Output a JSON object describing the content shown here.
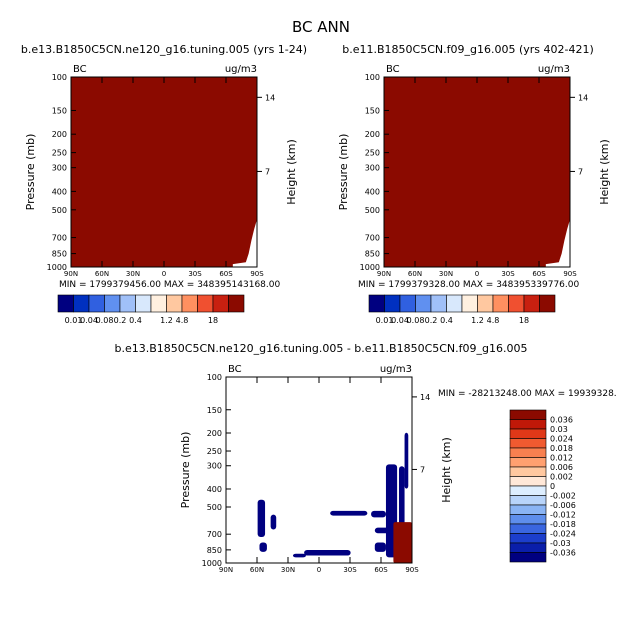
{
  "figure_title": "BC ANN",
  "colors": {
    "panel_fill": "#8B0A00",
    "contour": "#000080"
  },
  "chart_data": [
    {
      "type": "heatmap",
      "id": "panel1",
      "title": "b.e13.B1850C5CN.ne120_g16.tuning.005 (yrs 1-24)",
      "var_label": "BC",
      "units": "ug/m3",
      "ylabel": "Pressure (mb)",
      "ylabel_right": "Height (km)",
      "x_ticks": [
        "90N",
        "60N",
        "30N",
        "0",
        "30S",
        "60S",
        "90S"
      ],
      "y_ticks": [
        "100",
        "150",
        "200",
        "250",
        "300",
        "400",
        "500",
        "700",
        "850",
        "1000"
      ],
      "y_ticks_right": [
        "14",
        "7"
      ],
      "stats": "MIN = 1799379456.00   MAX = 348395143168.00",
      "fill": "uniform (above top contour level)"
    },
    {
      "type": "heatmap",
      "id": "panel2",
      "title": "b.e11.B1850C5CN.f09_g16.005 (yrs 402-421)",
      "var_label": "BC",
      "units": "ug/m3",
      "ylabel": "Pressure (mb)",
      "ylabel_right": "Height (km)",
      "x_ticks": [
        "90N",
        "60N",
        "30N",
        "0",
        "30S",
        "60S",
        "90S"
      ],
      "y_ticks": [
        "100",
        "150",
        "200",
        "250",
        "300",
        "400",
        "500",
        "700",
        "850",
        "1000"
      ],
      "y_ticks_right": [
        "14",
        "7"
      ],
      "stats": "MIN = 1799379328.00   MAX = 348395339776.00",
      "fill": "uniform (above top contour level)"
    },
    {
      "type": "heatmap",
      "id": "panel3",
      "title": "b.e13.B1850C5CN.ne120_g16.tuning.005 - b.e11.B1850C5CN.f09_g16.005",
      "var_label": "BC",
      "units": "ug/m3",
      "ylabel": "Pressure (mb)",
      "ylabel_right": "Height (km)",
      "x_ticks": [
        "90N",
        "60N",
        "30N",
        "0",
        "30S",
        "60S",
        "90S"
      ],
      "y_ticks": [
        "100",
        "150",
        "200",
        "250",
        "300",
        "400",
        "500",
        "700",
        "850",
        "1000"
      ],
      "y_ticks_right": [
        "14",
        "7"
      ],
      "stats": "MIN = -28213248.00   MAX = 19939328."
    }
  ],
  "colorbar_top": {
    "labels": [
      "0.01",
      "0.04",
      "0.08",
      "0.2",
      "0.4",
      "1.2",
      "4.8",
      "18"
    ],
    "colors": [
      "#000080",
      "#0030C0",
      "#3060E0",
      "#6090F0",
      "#A0C0F8",
      "#D8E8FC",
      "#FFF0E0",
      "#FFC8A0",
      "#FF9060",
      "#F05030",
      "#C82010",
      "#8B0A00"
    ]
  },
  "colorbar_diff": {
    "labels": [
      "0.036",
      "0.03",
      "0.024",
      "0.018",
      "0.012",
      "0.006",
      "0.002",
      "0",
      "-0.002",
      "-0.006",
      "-0.012",
      "-0.018",
      "-0.024",
      "-0.03",
      "-0.036"
    ],
    "colors": [
      "#8B0A00",
      "#C01808",
      "#E03818",
      "#F05A30",
      "#F88050",
      "#FFA070",
      "#FFC8A0",
      "#FFE8D8",
      "#DDEEFF",
      "#B8D4FA",
      "#8AB4F4",
      "#5E8EEC",
      "#3A66E0",
      "#1C3ECC",
      "#0A1EAA",
      "#000080"
    ]
  }
}
